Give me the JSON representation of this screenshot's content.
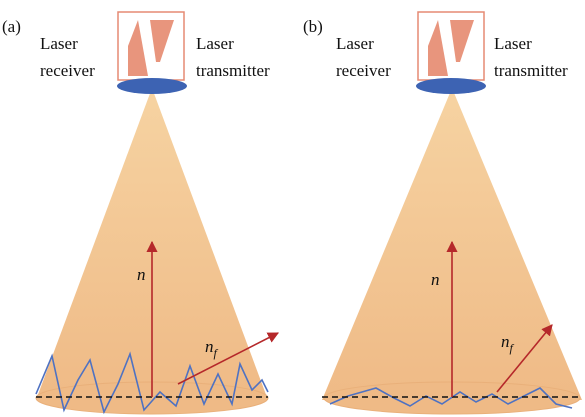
{
  "panels": [
    {
      "label": "(a)",
      "receiver": [
        "Laser",
        "receiver"
      ],
      "transmitter": [
        "Laser",
        "transmitter"
      ],
      "normal": "n",
      "facet_normal": "n",
      "facet_normal_sub": "f"
    },
    {
      "label": "(b)",
      "receiver": [
        "Laser",
        "receiver"
      ],
      "transmitter": [
        "Laser",
        "transmitter"
      ],
      "normal": "n",
      "facet_normal": "n",
      "facet_normal_sub": "f"
    }
  ],
  "colors": {
    "beam": "#f3c68a",
    "beam_edge": "#f7d7a8",
    "device_border": "#e58a73",
    "device_shape": "#e8957d",
    "lens": "#3d63b3",
    "normal_arrow": "#b5282a",
    "rough_surface": "#4f72c2",
    "reference_line": "#111111",
    "footprint": "#efba86"
  }
}
